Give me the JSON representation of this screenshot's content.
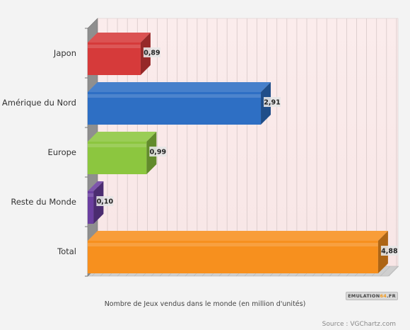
{
  "chart_data": {
    "type": "bar",
    "orientation": "horizontal",
    "categories": [
      "Japon",
      "Amérique du Nord",
      "Europe",
      "Reste du Monde",
      "Total"
    ],
    "values": [
      0.89,
      2.91,
      0.99,
      0.1,
      4.88
    ],
    "value_labels": [
      "0,89",
      "2,91",
      "0,99",
      "0,10",
      "4,88"
    ],
    "colors": [
      "#d63a3a",
      "#2e6fc4",
      "#8cc63f",
      "#6b3fa0",
      "#f7901e"
    ],
    "xlabel": "Nombre de Jeux vendus dans le monde (en million d'unités)",
    "ylabel": "",
    "xlim": [
      0,
      5
    ],
    "grid": true,
    "legend": "none"
  },
  "source": "Source : VGChartz.com",
  "watermark": {
    "part1": "EMULATION",
    "part2": "64",
    "part3": ".FR"
  }
}
